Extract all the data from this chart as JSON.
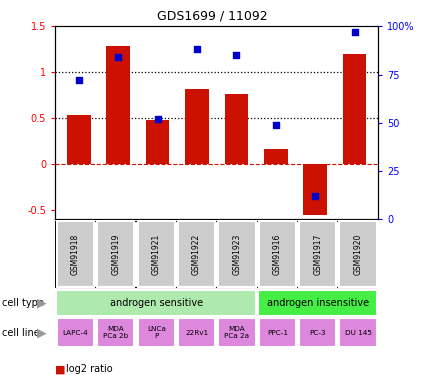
{
  "title": "GDS1699 / 11092",
  "samples": [
    "GSM91918",
    "GSM91919",
    "GSM91921",
    "GSM91922",
    "GSM91923",
    "GSM91916",
    "GSM91917",
    "GSM91920"
  ],
  "log2_ratio": [
    0.53,
    1.28,
    0.48,
    0.82,
    0.76,
    0.17,
    -0.55,
    1.2
  ],
  "percentile_rank": [
    72,
    84,
    52,
    88,
    85,
    49,
    12,
    97
  ],
  "bar_color": "#cc1100",
  "dot_color": "#0000cc",
  "ylim_left": [
    -0.6,
    1.5
  ],
  "ylim_right": [
    0,
    100
  ],
  "left_yticks": [
    -0.5,
    0.0,
    0.5,
    1.0,
    1.5
  ],
  "left_yticklabels": [
    "-0.5",
    "0",
    "0.5",
    "1",
    "1.5"
  ],
  "right_yticks": [
    0,
    25,
    50,
    75,
    100
  ],
  "right_yticklabels": [
    "0",
    "25",
    "50",
    "75",
    "100%"
  ],
  "cell_type_groups": [
    {
      "label": "androgen sensitive",
      "start": 0,
      "end": 5,
      "color": "#aeeaae"
    },
    {
      "label": "androgen insensitive",
      "start": 5,
      "end": 8,
      "color": "#44ee44"
    }
  ],
  "cell_lines": [
    "LAPC-4",
    "MDA\nPCa 2b",
    "LNCa\nP",
    "22Rv1",
    "MDA\nPCa 2a",
    "PPC-1",
    "PC-3",
    "DU 145"
  ],
  "cell_line_color": "#dd88dd",
  "gsm_box_color": "#cccccc",
  "hline_dotted": [
    0.5,
    1.0
  ],
  "hline_dashed_color": "#cc1100",
  "bar_width": 0.6
}
